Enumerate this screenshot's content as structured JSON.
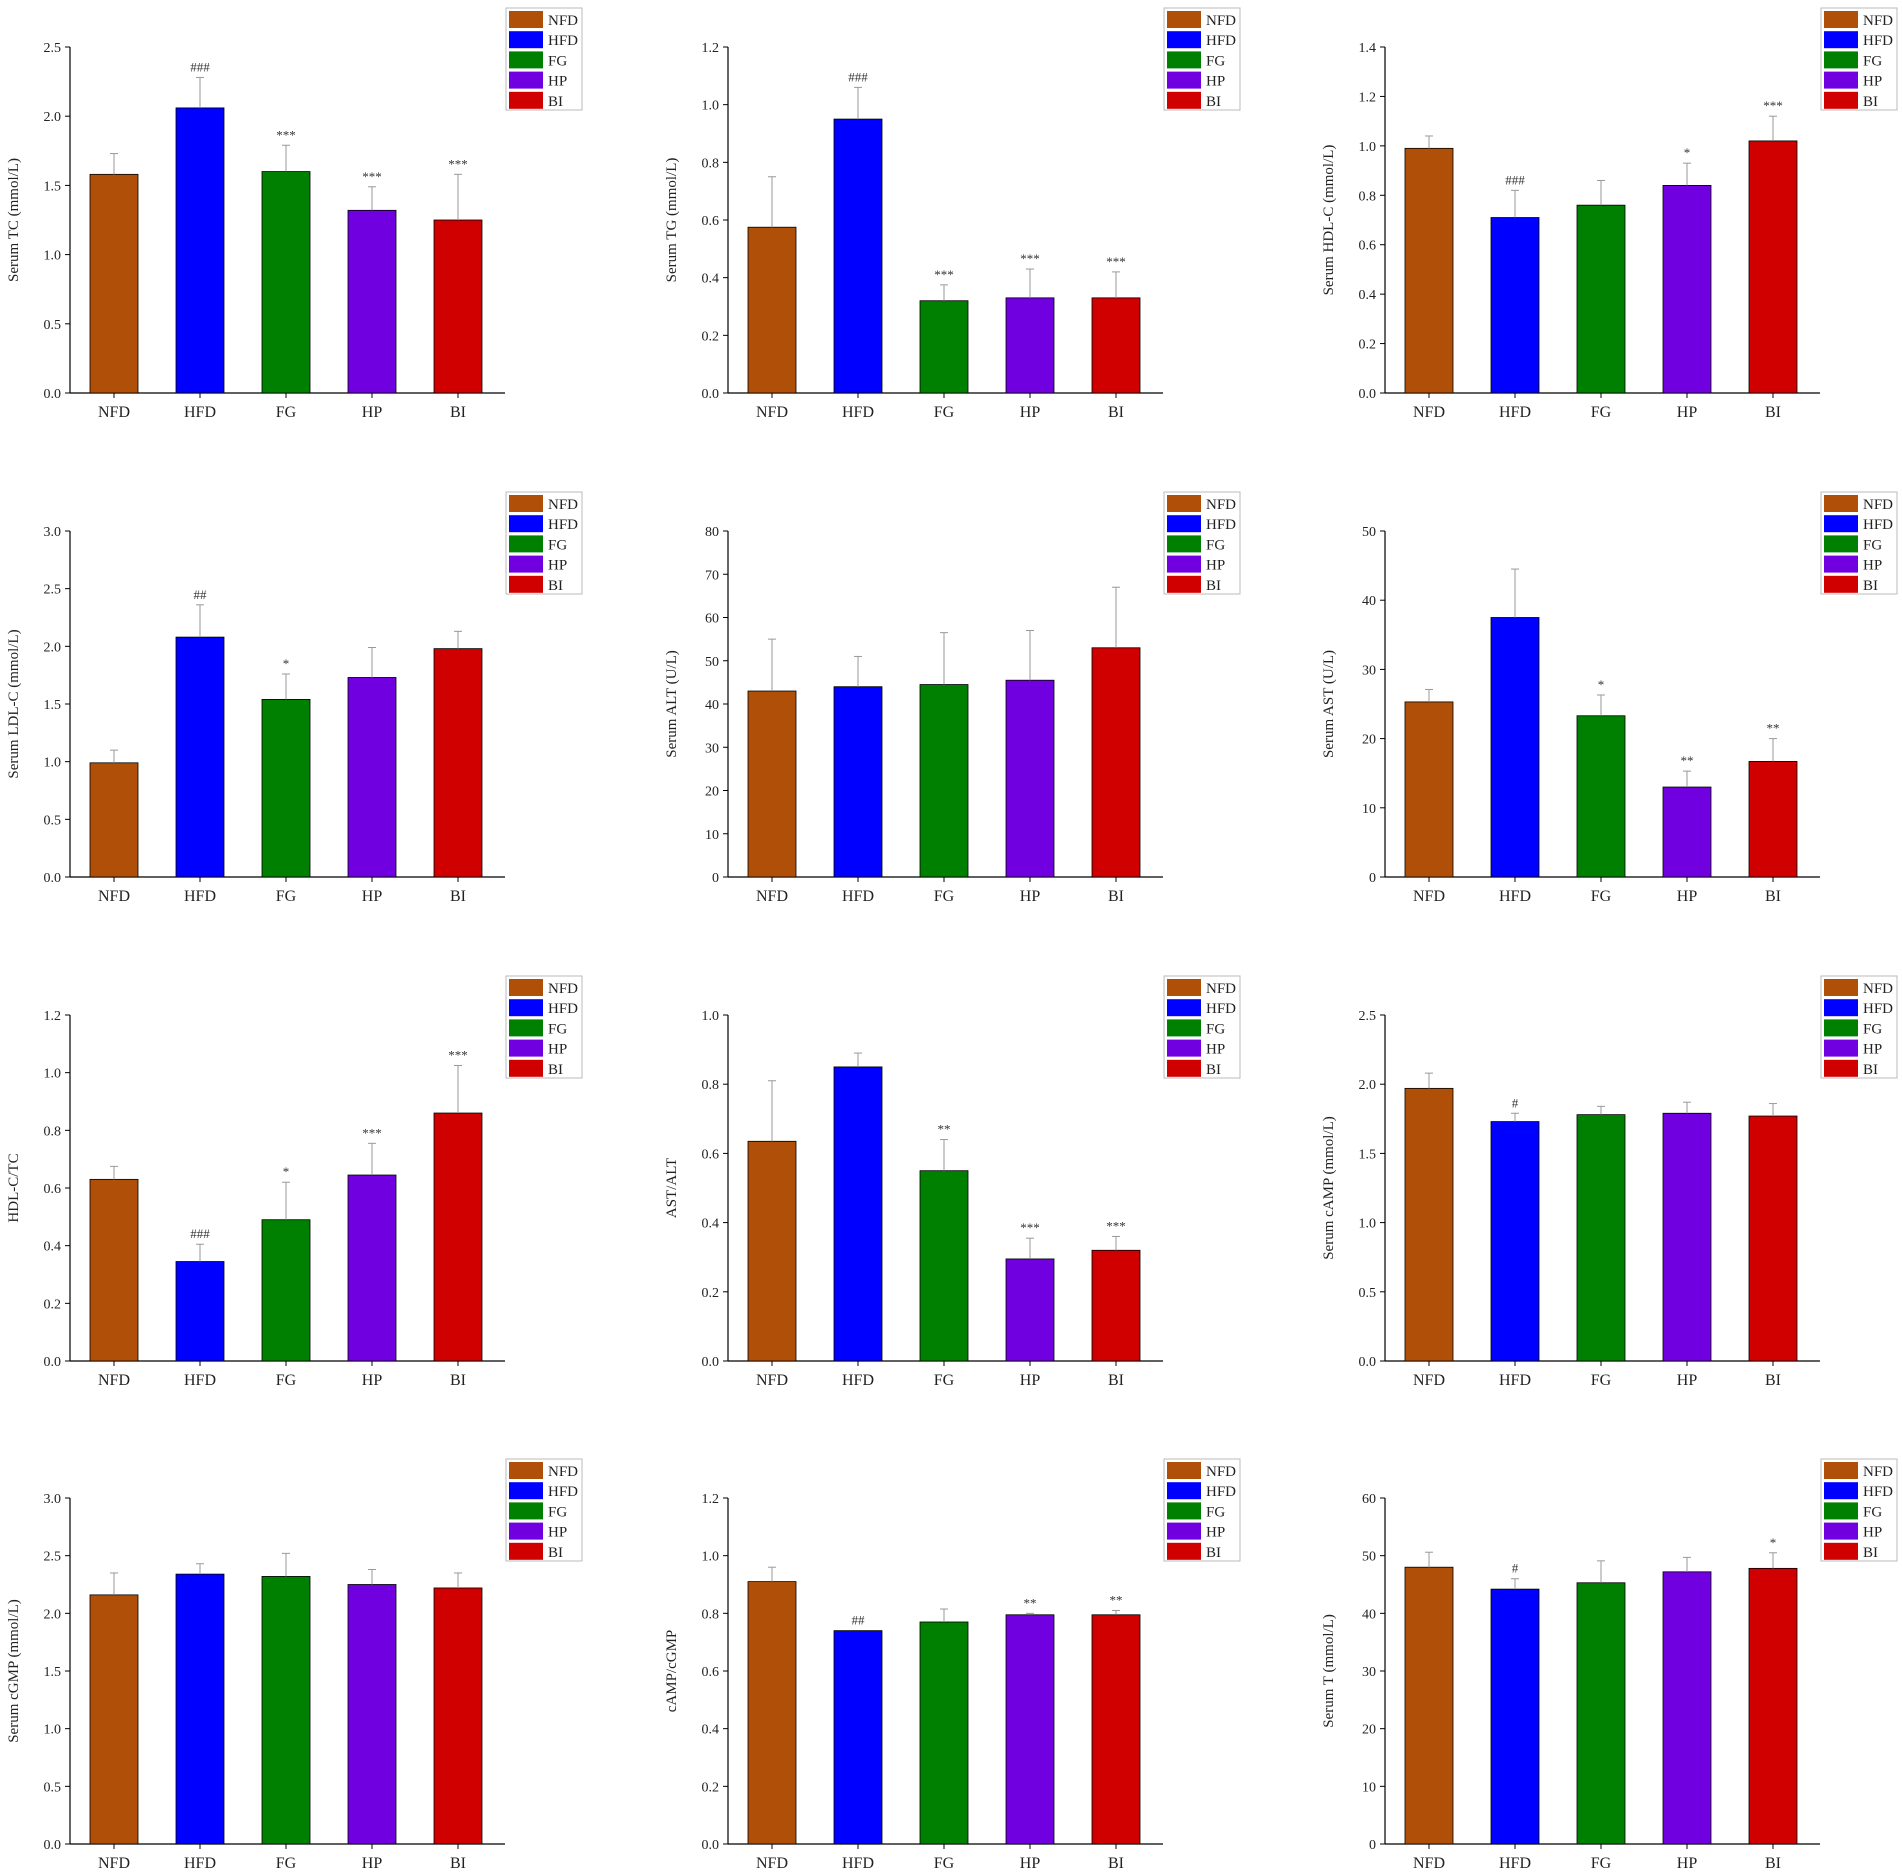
{
  "groups": [
    "NFD",
    "HFD",
    "FG",
    "HP",
    "BI"
  ],
  "colors": {
    "NFD": "#b05008",
    "HFD": "#0000ff",
    "FG": "#008000",
    "HP": "#7000e0",
    "BI": "#d00000"
  },
  "chart_data": [
    {
      "type": "bar",
      "ylabel": "Serum TC (mmol/L)",
      "ylim": [
        0,
        2.5
      ],
      "yticks": [
        "0.0",
        "0.5",
        "1.0",
        "1.5",
        "2.0",
        "2.5"
      ],
      "categories": [
        "NFD",
        "HFD",
        "FG",
        "HP",
        "BI"
      ],
      "values": [
        1.58,
        2.06,
        1.6,
        1.32,
        1.25
      ],
      "errors": [
        0.15,
        0.22,
        0.19,
        0.17,
        0.33
      ],
      "significance": [
        "",
        "###",
        "***",
        "***",
        "***"
      ],
      "legend": "top-right"
    },
    {
      "type": "bar",
      "ylabel": "Serum TG (mmol/L)",
      "ylim": [
        0,
        1.2
      ],
      "yticks": [
        "0.0",
        "0.2",
        "0.4",
        "0.6",
        "0.8",
        "1.0",
        "1.2"
      ],
      "categories": [
        "NFD",
        "HFD",
        "FG",
        "HP",
        "BI"
      ],
      "values": [
        0.575,
        0.95,
        0.32,
        0.33,
        0.33
      ],
      "errors": [
        0.175,
        0.11,
        0.055,
        0.1,
        0.09
      ],
      "significance": [
        "",
        "###",
        "***",
        "***",
        "***"
      ],
      "legend": "top-right"
    },
    {
      "type": "bar",
      "ylabel": "Serum HDL-C (mmol/L)",
      "ylim": [
        0,
        1.4
      ],
      "yticks": [
        "0.0",
        "0.2",
        "0.4",
        "0.6",
        "0.8",
        "1.0",
        "1.2",
        "1.4"
      ],
      "categories": [
        "NFD",
        "HFD",
        "FG",
        "HP",
        "BI"
      ],
      "values": [
        0.99,
        0.71,
        0.76,
        0.84,
        1.02
      ],
      "errors": [
        0.05,
        0.11,
        0.1,
        0.09,
        0.1
      ],
      "significance": [
        "",
        "###",
        "",
        "*",
        "***"
      ],
      "legend": "top-right"
    },
    {
      "type": "bar",
      "ylabel": "Serum LDL-C (mmol/L)",
      "ylim": [
        0,
        3.0
      ],
      "yticks": [
        "0.0",
        "0.5",
        "1.0",
        "1.5",
        "2.0",
        "2.5",
        "3.0"
      ],
      "categories": [
        "NFD",
        "HFD",
        "FG",
        "HP",
        "BI"
      ],
      "values": [
        0.99,
        2.08,
        1.54,
        1.73,
        1.98
      ],
      "errors": [
        0.11,
        0.28,
        0.22,
        0.26,
        0.15
      ],
      "significance": [
        "",
        "##",
        "*",
        "",
        ""
      ],
      "legend": "top-right"
    },
    {
      "type": "bar",
      "ylabel": "Serum ALT (U/L)",
      "ylim": [
        0,
        80
      ],
      "yticks": [
        "0",
        "10",
        "20",
        "30",
        "40",
        "50",
        "60",
        "70",
        "80"
      ],
      "categories": [
        "NFD",
        "HFD",
        "FG",
        "HP",
        "BI"
      ],
      "values": [
        43,
        44,
        44.5,
        45.5,
        53
      ],
      "errors": [
        12,
        7,
        12,
        11.5,
        14
      ],
      "significance": [
        "",
        "",
        "",
        "",
        ""
      ],
      "legend": "top-right"
    },
    {
      "type": "bar",
      "ylabel": "Serum AST (U/L)",
      "ylim": [
        0,
        50
      ],
      "yticks": [
        "0",
        "10",
        "20",
        "30",
        "40",
        "50"
      ],
      "categories": [
        "NFD",
        "HFD",
        "FG",
        "HP",
        "BI"
      ],
      "values": [
        25.3,
        37.5,
        23.3,
        13,
        16.7
      ],
      "errors": [
        1.8,
        7,
        3,
        2.3,
        3.3
      ],
      "significance": [
        "",
        "",
        "*",
        "**",
        "**"
      ],
      "legend": "top-right"
    },
    {
      "type": "bar",
      "ylabel": "HDL-C/TC",
      "ylim": [
        0,
        1.2
      ],
      "yticks": [
        "0.0",
        "0.2",
        "0.4",
        "0.6",
        "0.8",
        "1.0",
        "1.2"
      ],
      "categories": [
        "NFD",
        "HFD",
        "FG",
        "HP",
        "BI"
      ],
      "values": [
        0.63,
        0.345,
        0.49,
        0.645,
        0.86
      ],
      "errors": [
        0.045,
        0.06,
        0.13,
        0.11,
        0.165
      ],
      "significance": [
        "",
        "###",
        "*",
        "***",
        "***"
      ],
      "legend": "top-right"
    },
    {
      "type": "bar",
      "ylabel": "AST/ALT",
      "ylim": [
        0,
        1.0
      ],
      "yticks": [
        "0.0",
        "0.2",
        "0.4",
        "0.6",
        "0.8",
        "1.0"
      ],
      "categories": [
        "NFD",
        "HFD",
        "FG",
        "HP",
        "BI"
      ],
      "values": [
        0.635,
        0.85,
        0.55,
        0.295,
        0.32
      ],
      "errors": [
        0.175,
        0.04,
        0.09,
        0.06,
        0.04
      ],
      "significance": [
        "",
        "",
        "**",
        "***",
        "***"
      ],
      "legend": "top-right"
    },
    {
      "type": "bar",
      "ylabel": "Serum cAMP (mmol/L)",
      "ylim": [
        0,
        2.5
      ],
      "yticks": [
        "0.0",
        "0.5",
        "1.0",
        "1.5",
        "2.0",
        "2.5"
      ],
      "categories": [
        "NFD",
        "HFD",
        "FG",
        "HP",
        "BI"
      ],
      "values": [
        1.97,
        1.73,
        1.78,
        1.79,
        1.77
      ],
      "errors": [
        0.11,
        0.06,
        0.06,
        0.08,
        0.09
      ],
      "significance": [
        "",
        "#",
        "",
        "",
        ""
      ],
      "legend": "top-right"
    },
    {
      "type": "bar",
      "ylabel": "Serum cGMP (mmol/L)",
      "ylim": [
        0,
        3.0
      ],
      "yticks": [
        "0.0",
        "0.5",
        "1.0",
        "1.5",
        "2.0",
        "2.5",
        "3.0"
      ],
      "categories": [
        "NFD",
        "HFD",
        "FG",
        "HP",
        "BI"
      ],
      "values": [
        2.16,
        2.34,
        2.32,
        2.25,
        2.22
      ],
      "errors": [
        0.19,
        0.09,
        0.2,
        0.13,
        0.13
      ],
      "significance": [
        "",
        "",
        "",
        "",
        ""
      ],
      "legend": "top-right"
    },
    {
      "type": "bar",
      "ylabel": "cAMP/cGMP",
      "ylim": [
        0,
        1.2
      ],
      "yticks": [
        "0.0",
        "0.2",
        "0.4",
        "0.6",
        "0.8",
        "1.0",
        "1.2"
      ],
      "categories": [
        "NFD",
        "HFD",
        "FG",
        "HP",
        "BI"
      ],
      "values": [
        0.91,
        0.74,
        0.77,
        0.795,
        0.795
      ],
      "errors": [
        0.05,
        0.0,
        0.045,
        0.005,
        0.015
      ],
      "significance": [
        "",
        "##",
        "",
        "**",
        "**"
      ],
      "legend": "top-right"
    },
    {
      "type": "bar",
      "ylabel": "Serum T (mmol/L)",
      "ylim": [
        0,
        60
      ],
      "yticks": [
        "0",
        "10",
        "20",
        "30",
        "40",
        "50",
        "60"
      ],
      "categories": [
        "NFD",
        "HFD",
        "FG",
        "HP",
        "BI"
      ],
      "values": [
        48,
        44.2,
        45.3,
        47.2,
        47.8
      ],
      "errors": [
        2.6,
        1.8,
        3.8,
        2.5,
        2.7
      ],
      "significance": [
        "",
        "#",
        "",
        "",
        "*"
      ],
      "legend": "top-right"
    }
  ]
}
